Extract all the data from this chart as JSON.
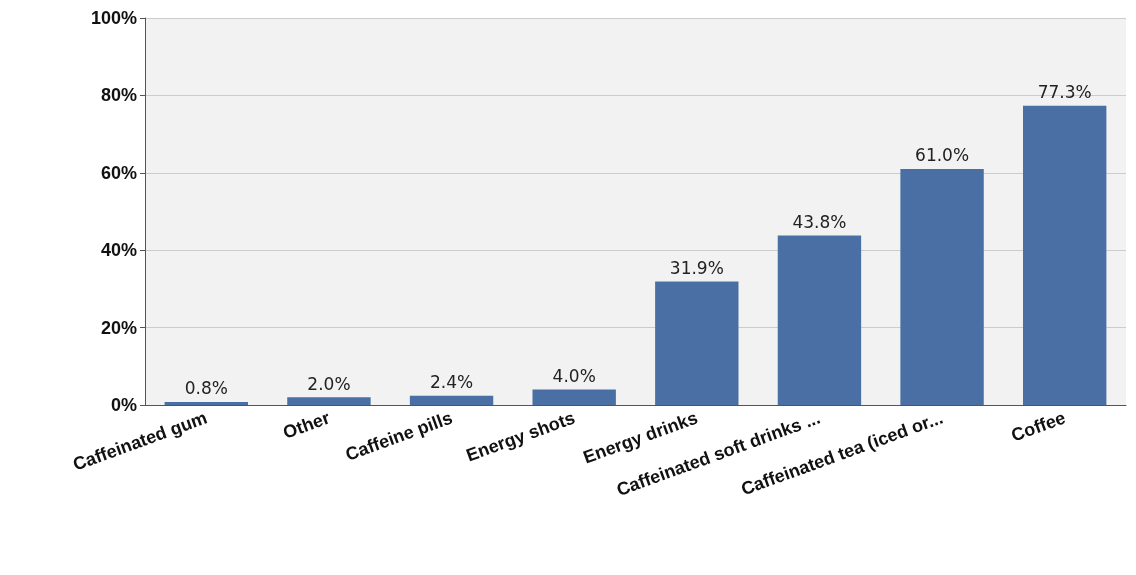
{
  "chart_data": {
    "type": "bar",
    "categories": [
      "Caffeinated gum",
      "Other",
      "Caffeine pills",
      "Energy shots",
      "Energy drinks",
      "Caffeinated soft drinks ...",
      "Caffeinated tea (iced or...",
      "Coffee"
    ],
    "values": [
      0.8,
      2.0,
      2.4,
      4.0,
      31.9,
      43.8,
      61.0,
      77.3
    ],
    "value_labels": [
      "0.8%",
      "2.0%",
      "2.4%",
      "4.0%",
      "31.9%",
      "43.8%",
      "61.0%",
      "77.3%"
    ],
    "color": "#4a6fa5",
    "ylim": [
      0,
      100
    ],
    "yticks": [
      {
        "value": 0,
        "label": "0%"
      },
      {
        "value": 20,
        "label": "20%"
      },
      {
        "value": 40,
        "label": "40%"
      },
      {
        "value": 60,
        "label": "60%"
      },
      {
        "value": 80,
        "label": "80%"
      },
      {
        "value": 100,
        "label": "100%"
      }
    ],
    "grid": "y"
  }
}
